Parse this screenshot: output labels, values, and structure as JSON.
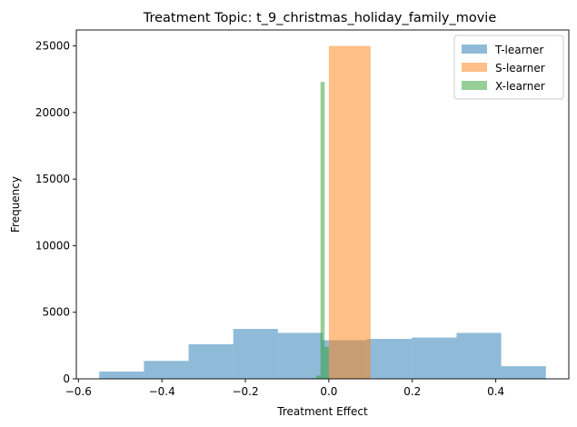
{
  "chart_data": {
    "type": "histogram",
    "title": "Treatment Topic: t_9_christmas_holiday_family_movie",
    "xlabel": "Treatment Effect",
    "ylabel": "Frequency",
    "xlim": [
      -0.605,
      0.575
    ],
    "ylim": [
      0,
      26200
    ],
    "xticks": [
      -0.6,
      -0.4,
      -0.2,
      0.0,
      0.2,
      0.4
    ],
    "xtick_labels": [
      "−0.6",
      "−0.4",
      "−0.2",
      "0.0",
      "0.2",
      "0.4"
    ],
    "yticks": [
      0,
      5000,
      10000,
      15000,
      20000,
      25000
    ],
    "ytick_labels": [
      "0",
      "5000",
      "10000",
      "15000",
      "20000",
      "25000"
    ],
    "legend_position": "top-right",
    "bar_alpha": 0.5,
    "series": [
      {
        "name": "T-learner",
        "color": "#1f77b4",
        "bins": [
          {
            "x0": -0.55,
            "x1": -0.443,
            "value": 550
          },
          {
            "x0": -0.443,
            "x1": -0.336,
            "value": 1350
          },
          {
            "x0": -0.336,
            "x1": -0.229,
            "value": 2600
          },
          {
            "x0": -0.229,
            "x1": -0.122,
            "value": 3750
          },
          {
            "x0": -0.122,
            "x1": -0.015,
            "value": 3450
          },
          {
            "x0": -0.015,
            "x1": 0.092,
            "value": 2900
          },
          {
            "x0": 0.092,
            "x1": 0.199,
            "value": 3000
          },
          {
            "x0": 0.199,
            "x1": 0.306,
            "value": 3100
          },
          {
            "x0": 0.306,
            "x1": 0.413,
            "value": 3450
          },
          {
            "x0": 0.413,
            "x1": 0.52,
            "value": 950
          }
        ]
      },
      {
        "name": "S-learner",
        "color": "#ff7f0e",
        "bins": [
          {
            "x0": 0.0,
            "x1": 0.1,
            "value": 25000
          }
        ]
      },
      {
        "name": "X-learner",
        "color": "#2ca02c",
        "bins": [
          {
            "x0": -0.04,
            "x1": -0.03,
            "value": 50
          },
          {
            "x0": -0.03,
            "x1": -0.02,
            "value": 250
          },
          {
            "x0": -0.02,
            "x1": -0.01,
            "value": 22300
          },
          {
            "x0": -0.01,
            "x1": 0.0,
            "value": 2400
          }
        ]
      }
    ]
  }
}
